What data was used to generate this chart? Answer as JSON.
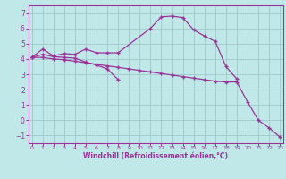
{
  "xlabel": "Windchill (Refroidissement éolien,°C)",
  "background_color": "#c0e8e8",
  "grid_color": "#a0c8c8",
  "line_color": "#993399",
  "x_hours": [
    0,
    1,
    2,
    3,
    4,
    5,
    6,
    7,
    8,
    9,
    10,
    11,
    12,
    13,
    14,
    15,
    16,
    17,
    18,
    19,
    20,
    21,
    22,
    23
  ],
  "series1": [
    4.1,
    4.65,
    4.2,
    4.35,
    4.3,
    4.65,
    4.4,
    4.4,
    4.4,
    null,
    null,
    6.0,
    6.75,
    6.8,
    6.7,
    5.9,
    5.5,
    5.15,
    3.5,
    2.7,
    null,
    null,
    null,
    null
  ],
  "series2": [
    4.1,
    4.3,
    4.15,
    4.1,
    4.05,
    3.8,
    3.6,
    3.35,
    2.65,
    null,
    null,
    null,
    null,
    null,
    null,
    null,
    null,
    null,
    null,
    null,
    null,
    null,
    null,
    null
  ],
  "series3": [
    4.1,
    4.1,
    4.0,
    3.95,
    3.85,
    3.75,
    3.65,
    3.55,
    3.45,
    3.35,
    3.25,
    3.15,
    3.05,
    2.95,
    2.85,
    2.75,
    2.65,
    2.55,
    2.5,
    2.5,
    1.2,
    0.0,
    -0.5,
    -1.1
  ],
  "ylim": [
    -1.5,
    7.5
  ],
  "yticks": [
    -1,
    0,
    1,
    2,
    3,
    4,
    5,
    6,
    7
  ],
  "xlim": [
    -0.3,
    23.3
  ],
  "xtick_labels": [
    "0",
    "1",
    "2",
    "3",
    "4",
    "5",
    "6",
    "7",
    "8",
    "9",
    "10",
    "11",
    "12",
    "13",
    "14",
    "15",
    "16",
    "17",
    "18",
    "19",
    "20",
    "21",
    "22",
    "23"
  ]
}
